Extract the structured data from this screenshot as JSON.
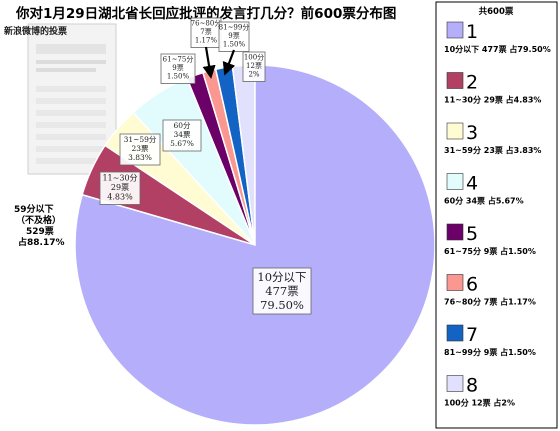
{
  "chart_data": {
    "type": "pie",
    "title": "你对1月29日湖北省长回应批评的发言打几分？前600票分布图",
    "total_label": "共600票",
    "categories": [
      "10分以下",
      "11~30分",
      "31~59分",
      "60分",
      "61~75分",
      "76~80分",
      "81~99分",
      "100分"
    ],
    "values": [
      477,
      29,
      23,
      34,
      9,
      7,
      9,
      12
    ],
    "percents": [
      "79.50%",
      "4.83%",
      "3.83%",
      "5.67%",
      "1.50%",
      "1.17%",
      "1.50%",
      "2%"
    ],
    "colors": [
      "#b4aefb",
      "#b24065",
      "#fffbd2",
      "#e2fbfd",
      "#6a0068",
      "#fb9791",
      "#1363c4",
      "#e1e0fd"
    ],
    "slice_labels": [
      [
        "10分以下",
        "477票",
        "79.50%"
      ],
      [
        "11~30分",
        "29票",
        "4.83%"
      ],
      [
        "31~59分",
        "23票",
        "3.83%"
      ],
      [
        "60分",
        "34票",
        "5.67%"
      ],
      [
        "61~75分",
        "9票",
        "1.50%"
      ],
      [
        "76~80分",
        "7票",
        "1.17%"
      ],
      [
        "81~99分",
        "9票",
        "1.50%"
      ],
      [
        "100分",
        "12票",
        "2%"
      ]
    ],
    "legend": [
      {
        "num": "1",
        "text": "10分以下 477票 占79.50%"
      },
      {
        "num": "2",
        "text": "11~30分 29票 占4.83%"
      },
      {
        "num": "3",
        "text": "31~59分 23票 占3.83%"
      },
      {
        "num": "4",
        "text": "60分 34票 占5.67%"
      },
      {
        "num": "5",
        "text": "61~75分 9票 占1.50%"
      },
      {
        "num": "6",
        "text": "76~80分 7票 占1.17%"
      },
      {
        "num": "7",
        "text": "81~99分 9票 占1.50%"
      },
      {
        "num": "8",
        "text": "100分 12票 占2%"
      }
    ],
    "side_annotation": [
      "59分以下",
      "（不及格）",
      "529票",
      "占88.17%"
    ],
    "inset_caption": "新浪微博的投票"
  }
}
